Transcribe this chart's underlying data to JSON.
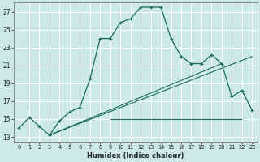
{
  "xlabel": "Humidex (Indice chaleur)",
  "bg_color": "#cce8e8",
  "grid_color": "#b8d8d8",
  "line_color": "#1a6b5a",
  "xlim": [
    -0.5,
    23.5
  ],
  "ylim": [
    12.5,
    28.0
  ],
  "yticks": [
    13,
    15,
    17,
    19,
    21,
    23,
    25,
    27
  ],
  "xticks": [
    0,
    1,
    2,
    3,
    4,
    5,
    6,
    7,
    8,
    9,
    10,
    11,
    12,
    13,
    14,
    15,
    16,
    17,
    18,
    19,
    20,
    21,
    22,
    23
  ],
  "main_line_x": [
    0,
    1,
    2,
    3,
    4,
    5,
    6,
    7,
    8,
    9,
    10,
    11,
    12,
    13,
    14,
    15,
    16,
    17,
    18,
    19,
    20,
    21,
    22,
    23
  ],
  "main_line_y": [
    14.0,
    15.2,
    14.2,
    13.2,
    14.8,
    15.8,
    16.3,
    19.5,
    24.0,
    24.0,
    25.8,
    26.2,
    27.5,
    27.5,
    27.5,
    24.0,
    22.0,
    21.2,
    21.2,
    22.2,
    21.2,
    17.5,
    18.2,
    16.0
  ],
  "diag_line1_x": [
    3,
    23
  ],
  "diag_line1_y": [
    13.2,
    22.0
  ],
  "diag_line2_x": [
    3,
    20
  ],
  "diag_line2_y": [
    13.2,
    21.2
  ],
  "horiz_line_y": 15.0,
  "horiz_line_x_start": 9,
  "horiz_line_x_end": 22
}
